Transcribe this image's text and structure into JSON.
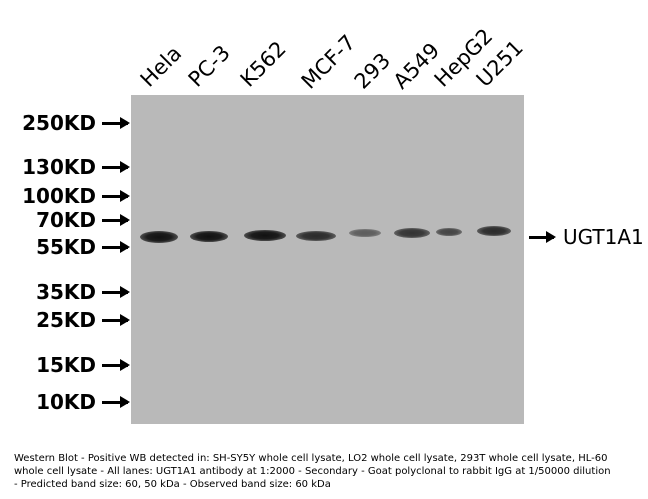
{
  "lanes": [
    "Hela",
    "PC-3",
    "K562",
    "MCF-7",
    "293",
    "A549",
    "HepG2",
    "U251"
  ],
  "markers": [
    "250KD",
    "130KD",
    "100KD",
    "70KD",
    "55KD",
    "35KD",
    "25KD",
    "15KD",
    "10KD"
  ],
  "target_label": "UGT1A1",
  "caption": "Western Blot  - Positive WB detected in: SH-SY5Y whole cell lysate, LO2 whole cell lysate, 293T whole cell lysate, HL-60 whole cell lysate  - All lanes: UGT1A1 antibody at 1:2000  - Secondary  - Goat polyclonal to rabbit IgG at 1/50000 dilution  - Predicted band size: 60, 50 kDa  - Observed band size: 60 kDa",
  "colors": {
    "membrane": "#b9b9b9",
    "band": "#111111"
  }
}
